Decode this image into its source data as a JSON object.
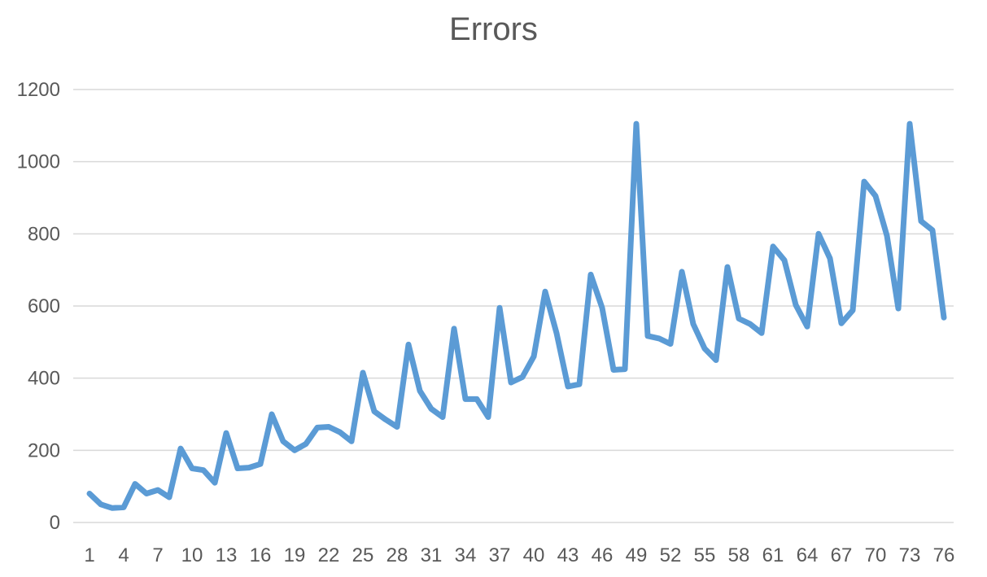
{
  "chart_data": {
    "type": "line",
    "title": "Errors",
    "xlabel": "",
    "ylabel": "",
    "ylim": [
      0,
      1200
    ],
    "yticks": [
      0,
      200,
      400,
      600,
      800,
      1000,
      1200
    ],
    "x": [
      1,
      2,
      3,
      4,
      5,
      6,
      7,
      8,
      9,
      10,
      11,
      12,
      13,
      14,
      15,
      16,
      17,
      18,
      19,
      20,
      21,
      22,
      23,
      24,
      25,
      26,
      27,
      28,
      29,
      30,
      31,
      32,
      33,
      34,
      35,
      36,
      37,
      38,
      39,
      40,
      41,
      42,
      43,
      44,
      45,
      46,
      47,
      48,
      49,
      50,
      51,
      52,
      53,
      54,
      55,
      56,
      57,
      58,
      59,
      60,
      61,
      62,
      63,
      64,
      65,
      66,
      67,
      68,
      69,
      70,
      71,
      72,
      73,
      74,
      75,
      76
    ],
    "xtick_labels": [
      "1",
      "4",
      "7",
      "10",
      "13",
      "16",
      "19",
      "22",
      "25",
      "28",
      "31",
      "34",
      "37",
      "40",
      "43",
      "46",
      "49",
      "52",
      "55",
      "58",
      "61",
      "64",
      "67",
      "70",
      "73",
      "76"
    ],
    "grid": true,
    "legend": "none",
    "series": [
      {
        "color": "#5b9bd5",
        "values": [
          80,
          50,
          40,
          42,
          107,
          80,
          90,
          70,
          205,
          150,
          145,
          110,
          248,
          150,
          152,
          162,
          300,
          225,
          200,
          218,
          263,
          265,
          250,
          225,
          415,
          308,
          285,
          265,
          493,
          365,
          315,
          292,
          537,
          342,
          342,
          292,
          595,
          388,
          403,
          460,
          640,
          525,
          377,
          383,
          687,
          595,
          423,
          425,
          1105,
          517,
          510,
          495,
          695,
          550,
          482,
          450,
          708,
          565,
          550,
          525,
          765,
          727,
          603,
          543,
          800,
          732,
          552,
          588,
          945,
          905,
          795,
          593,
          1105,
          835,
          810,
          568
        ]
      }
    ]
  }
}
